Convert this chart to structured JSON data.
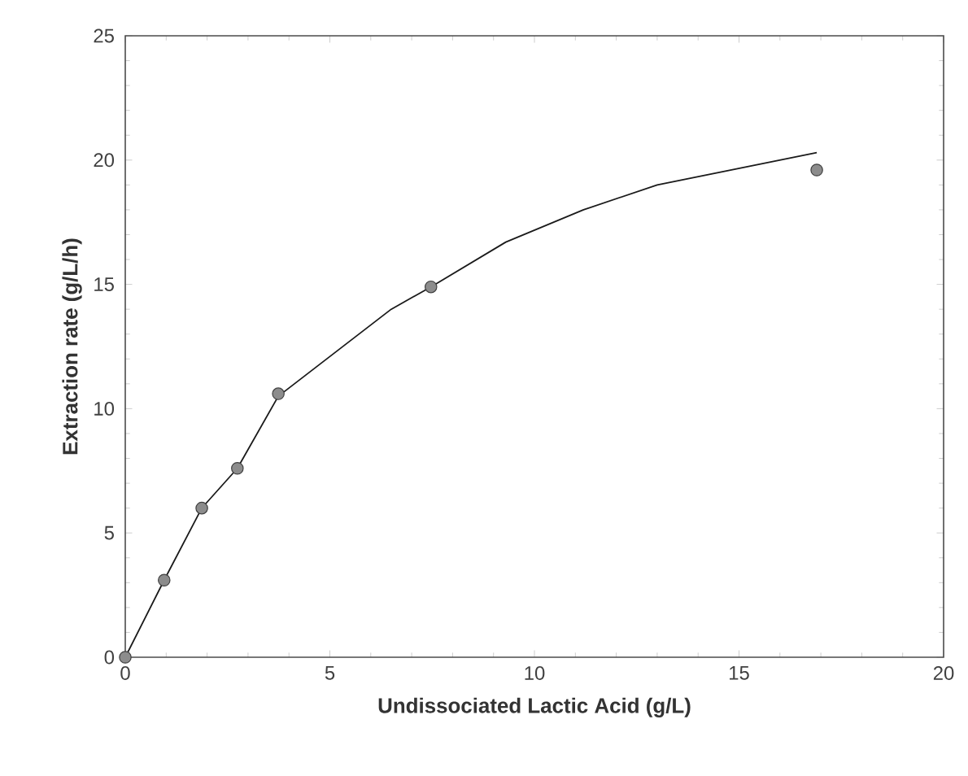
{
  "chart_data": {
    "type": "scatter",
    "xlabel": "Undissociated Lactic Acid (g/L)",
    "ylabel": "Extraction rate (g/L/h)",
    "xlim": [
      0,
      20
    ],
    "ylim": [
      0,
      25
    ],
    "xticks": [
      0,
      5,
      10,
      15,
      20
    ],
    "yticks": [
      0,
      5,
      10,
      15,
      20,
      25
    ],
    "grid": false,
    "marker": "circle",
    "series": [
      {
        "color": "#8c8c8c",
        "x": [
          0,
          0.95,
          1.87,
          2.74,
          3.74,
          7.47,
          16.9
        ],
        "values": [
          0,
          3.1,
          6.0,
          7.6,
          10.6,
          14.9,
          19.6
        ]
      },
      {
        "type": "line",
        "color": "#1a1a1a",
        "marker": "none",
        "line_style": "solid",
        "x": [
          0,
          0.95,
          1.87,
          2.74,
          3.74,
          6.5,
          7.47,
          9.3,
          11.2,
          13,
          16.9
        ],
        "values": [
          0,
          3.1,
          6.0,
          7.6,
          10.5,
          14.0,
          14.9,
          16.7,
          18.0,
          19.0,
          20.3
        ]
      }
    ]
  }
}
